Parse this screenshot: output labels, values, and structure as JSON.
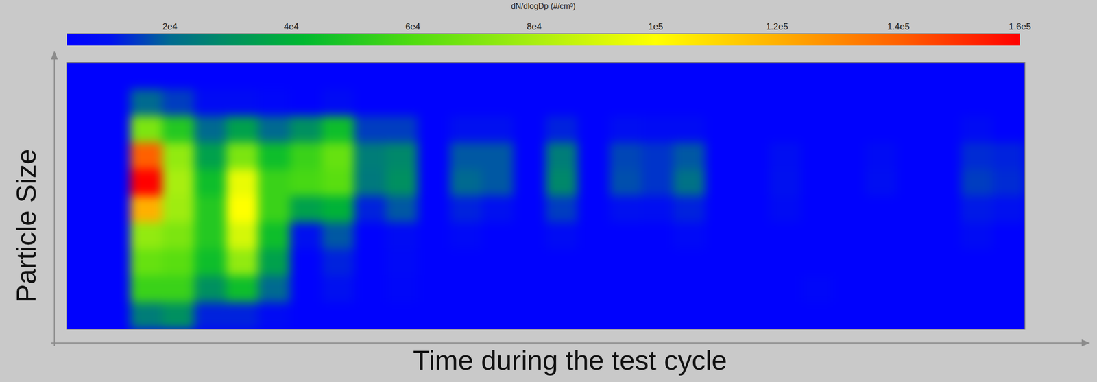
{
  "chart_data": {
    "type": "heatmap",
    "x_label": "Time during the test cycle",
    "y_label": "Particle Size",
    "tick_labels": false,
    "colorbar_label": "dN/dlogDp (#/cm³)",
    "colorbar_range": [
      3000,
      160000
    ],
    "colorbar_ticks": [
      {
        "value": 20000,
        "label": "2e4"
      },
      {
        "value": 40000,
        "label": "4e4"
      },
      {
        "value": 60000,
        "label": "6e4"
      },
      {
        "value": 80000,
        "label": "8e4"
      },
      {
        "value": 100000,
        "label": "1e5"
      },
      {
        "value": 120000,
        "label": "1.2e5"
      },
      {
        "value": 140000,
        "label": "1.4e5"
      },
      {
        "value": 160000,
        "label": "1.6e5"
      }
    ],
    "cells": [
      [
        4000,
        4000,
        4000,
        4000,
        4000,
        4000,
        4000,
        4000,
        4000,
        4000,
        4000,
        4000,
        4000,
        4000,
        4000,
        4000,
        4000,
        4000,
        4000,
        4000,
        4000,
        4000,
        4000,
        4000,
        4000,
        4000,
        4000,
        4000,
        4000,
        4000
      ],
      [
        4000,
        4000,
        20000,
        15000,
        8000,
        8000,
        6000,
        4000,
        8000,
        4000,
        4000,
        4000,
        4000,
        4000,
        4000,
        4000,
        4000,
        4000,
        4000,
        4000,
        4000,
        4000,
        4000,
        4000,
        4000,
        4000,
        4000,
        4000,
        4000,
        4000
      ],
      [
        4000,
        4000,
        70000,
        50000,
        20000,
        35000,
        20000,
        30000,
        45000,
        15000,
        15000,
        4000,
        10000,
        10000,
        4000,
        12000,
        4000,
        9000,
        8000,
        8000,
        4000,
        4000,
        4000,
        4000,
        4000,
        4000,
        4000,
        4000,
        8000,
        4000
      ],
      [
        4000,
        4000,
        140000,
        75000,
        35000,
        70000,
        45000,
        55000,
        65000,
        25000,
        28000,
        4000,
        18000,
        18000,
        4000,
        25000,
        4000,
        16000,
        14000,
        18000,
        4000,
        4000,
        9000,
        4000,
        4000,
        8000,
        4000,
        4000,
        13000,
        12000
      ],
      [
        4000,
        4000,
        160000,
        80000,
        45000,
        95000,
        55000,
        58000,
        62000,
        24000,
        30000,
        4000,
        20000,
        18000,
        4000,
        28000,
        4000,
        17000,
        14000,
        22000,
        4000,
        4000,
        10000,
        4000,
        4000,
        9000,
        4000,
        4000,
        15000,
        13000
      ],
      [
        4000,
        4000,
        120000,
        78000,
        50000,
        100000,
        55000,
        35000,
        40000,
        12000,
        18000,
        4000,
        12000,
        10000,
        4000,
        15000,
        4000,
        10000,
        9000,
        12000,
        4000,
        4000,
        8000,
        4000,
        4000,
        4000,
        4000,
        4000,
        11000,
        10000
      ],
      [
        4000,
        4000,
        75000,
        70000,
        50000,
        90000,
        45000,
        10000,
        18000,
        4000,
        8000,
        4000,
        7000,
        4000,
        4000,
        8000,
        4000,
        4000,
        4000,
        7000,
        4000,
        4000,
        4000,
        4000,
        4000,
        4000,
        4000,
        4000,
        8000,
        4000
      ],
      [
        4000,
        4000,
        65000,
        62000,
        45000,
        75000,
        35000,
        4000,
        12000,
        4000,
        7000,
        4000,
        4000,
        4000,
        4000,
        4000,
        4000,
        4000,
        4000,
        4000,
        4000,
        4000,
        4000,
        4000,
        4000,
        4000,
        4000,
        4000,
        4000,
        4000
      ],
      [
        4000,
        4000,
        55000,
        55000,
        30000,
        45000,
        20000,
        4000,
        10000,
        4000,
        6000,
        4000,
        4000,
        4000,
        4000,
        4000,
        4000,
        4000,
        4000,
        4000,
        4000,
        4000,
        4000,
        6000,
        4000,
        4000,
        4000,
        4000,
        4000,
        4000
      ],
      [
        4000,
        4000,
        25000,
        30000,
        12000,
        12000,
        8000,
        4000,
        4000,
        4000,
        4000,
        4000,
        4000,
        4000,
        4000,
        4000,
        4000,
        4000,
        4000,
        4000,
        4000,
        4000,
        4000,
        4000,
        4000,
        4000,
        4000,
        4000,
        4000,
        4000
      ]
    ]
  }
}
